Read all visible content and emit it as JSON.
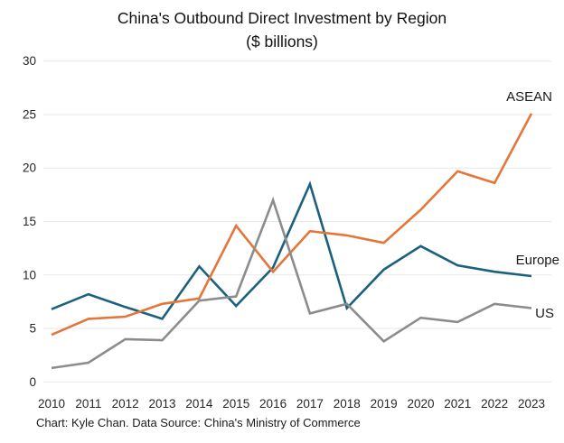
{
  "title": {
    "line1": "China's Outbound Direct Investment by Region",
    "line2": "($ billions)"
  },
  "footer": {
    "credit": "Chart: Kyle Chan. Data Source: China's Ministry of Commerce"
  },
  "chart_data": {
    "type": "line",
    "x": [
      2010,
      2011,
      2012,
      2013,
      2014,
      2015,
      2016,
      2017,
      2018,
      2019,
      2020,
      2021,
      2022,
      2023
    ],
    "series": [
      {
        "name": "ASEAN",
        "color": "#E4763B",
        "values": [
          4.4,
          5.9,
          6.1,
          7.3,
          7.8,
          14.6,
          10.3,
          14.1,
          13.7,
          13.0,
          16.1,
          19.7,
          18.6,
          25.1
        ]
      },
      {
        "name": "Europe",
        "color": "#1B617E",
        "values": [
          6.8,
          8.2,
          7.0,
          5.9,
          10.8,
          7.1,
          10.7,
          18.5,
          6.9,
          10.5,
          12.7,
          10.9,
          10.3,
          9.9
        ]
      },
      {
        "name": "US",
        "color": "#8C8C8C",
        "values": [
          1.3,
          1.8,
          4.0,
          3.9,
          7.6,
          8.0,
          17.0,
          6.4,
          7.3,
          3.8,
          6.0,
          5.6,
          7.3,
          6.9
        ]
      }
    ],
    "title": "China's Outbound Direct Investment by Region ($ billions)",
    "xlabel": "",
    "ylabel": "",
    "ylim": [
      0,
      30
    ],
    "y_ticks": [
      0,
      5,
      10,
      15,
      20,
      25,
      30
    ],
    "grid": "horizontal",
    "legend_position": "line-end-labels"
  },
  "colors": {
    "grid": "#E7E7E7",
    "axis_text": "#262626",
    "title_text": "#111111",
    "footer_text": "#1A1A1A"
  }
}
